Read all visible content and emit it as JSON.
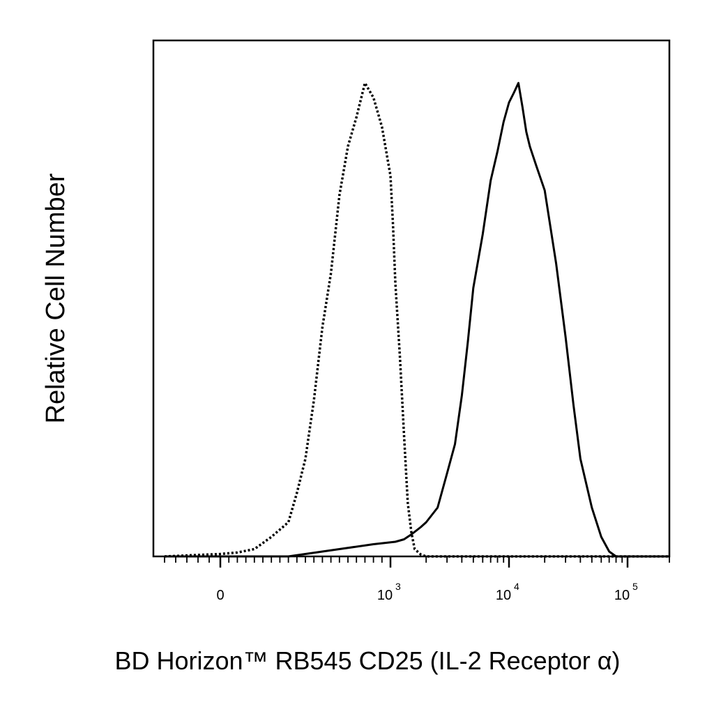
{
  "chart_data": {
    "type": "line",
    "title": "",
    "xlabel": "BD Horizon™ RB545 CD25 (IL-2 Receptor α)",
    "ylabel": "Relative Cell Number",
    "x_scale": "biexponential",
    "xlim": [
      -300,
      200000
    ],
    "ylim": [
      0,
      100
    ],
    "x_ticks": [
      {
        "value": 0,
        "base": "0",
        "exp": ""
      },
      {
        "value": 1000,
        "base": "10",
        "exp": "3"
      },
      {
        "value": 10000,
        "base": "10",
        "exp": "4"
      },
      {
        "value": 100000,
        "base": "10",
        "exp": "5"
      }
    ],
    "grid": false,
    "legend": "none",
    "series": [
      {
        "style": "dotted",
        "color": "#000000",
        "points": [
          [
            -250,
            0
          ],
          [
            0,
            0.5
          ],
          [
            100,
            0.8
          ],
          [
            200,
            1.5
          ],
          [
            300,
            4
          ],
          [
            400,
            7
          ],
          [
            450,
            13
          ],
          [
            500,
            20
          ],
          [
            550,
            32
          ],
          [
            600,
            47
          ],
          [
            650,
            58
          ],
          [
            700,
            74
          ],
          [
            750,
            84
          ],
          [
            800,
            90
          ],
          [
            850,
            97
          ],
          [
            900,
            94
          ],
          [
            950,
            88
          ],
          [
            1000,
            78
          ],
          [
            1050,
            68
          ],
          [
            1100,
            56
          ],
          [
            1200,
            41
          ],
          [
            1300,
            25
          ],
          [
            1400,
            11
          ],
          [
            1500,
            5
          ],
          [
            1600,
            1.5
          ],
          [
            1800,
            0.4
          ],
          [
            2000,
            0
          ],
          [
            200000,
            0
          ]
        ]
      },
      {
        "style": "solid",
        "color": "#000000",
        "points": [
          [
            -250,
            0
          ],
          [
            400,
            0
          ],
          [
            500,
            0.5
          ],
          [
            700,
            1.5
          ],
          [
            900,
            2.5
          ],
          [
            1100,
            3
          ],
          [
            1300,
            3.5
          ],
          [
            1500,
            4.5
          ],
          [
            1800,
            6
          ],
          [
            2000,
            7
          ],
          [
            2500,
            10
          ],
          [
            3000,
            17
          ],
          [
            3500,
            23
          ],
          [
            4000,
            33
          ],
          [
            4500,
            44
          ],
          [
            5000,
            55
          ],
          [
            6000,
            66
          ],
          [
            7000,
            77
          ],
          [
            8000,
            83
          ],
          [
            9000,
            89
          ],
          [
            10000,
            93
          ],
          [
            11000,
            95
          ],
          [
            12000,
            97
          ],
          [
            13000,
            92
          ],
          [
            14000,
            87
          ],
          [
            15000,
            84
          ],
          [
            17000,
            80
          ],
          [
            20000,
            75
          ],
          [
            25000,
            60
          ],
          [
            30000,
            45
          ],
          [
            35000,
            31
          ],
          [
            40000,
            20
          ],
          [
            50000,
            10
          ],
          [
            60000,
            4
          ],
          [
            70000,
            1
          ],
          [
            80000,
            0
          ],
          [
            200000,
            0
          ]
        ]
      }
    ]
  }
}
